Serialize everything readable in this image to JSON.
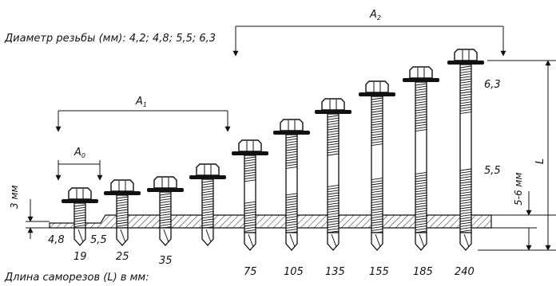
{
  "header": {
    "thread_diameter_text": "Диаметр резьбы (мм): 4,2; 4,8; 5,5; 6,3"
  },
  "footer": {
    "length_caption": "Длина саморезов (L) в мм:"
  },
  "dimension_labels": {
    "a0": "A",
    "a0_sub": "0",
    "a1": "A",
    "a1_sub": "1",
    "a2": "A",
    "a2_sub": "2",
    "plate_gap": "3 мм",
    "drill_depth": "5-6 мм",
    "length_symbol": "L"
  },
  "screws": [
    {
      "length": "19",
      "base_diameter": "4,8"
    },
    {
      "length": "25",
      "base_diameter": "5,5"
    },
    {
      "length": "35"
    },
    {
      "length": ""
    },
    {
      "length": "75"
    },
    {
      "length": "105"
    },
    {
      "length": "135"
    },
    {
      "length": "155"
    },
    {
      "length": "185"
    },
    {
      "length": "240"
    }
  ],
  "diameter_markers": {
    "top": "6,3",
    "middle": "5,5"
  },
  "colors": {
    "ink": "#111111",
    "hatch": "#222222"
  }
}
